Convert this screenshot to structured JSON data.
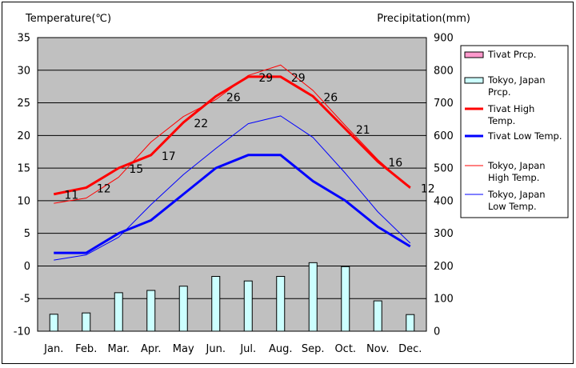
{
  "chart_data": {
    "type": "bar+line",
    "y_left_label": "Temperature(℃)",
    "y_right_label": "Precipitation(mm)",
    "y_left_range": [
      -10,
      35
    ],
    "y_left_ticks": [
      "35",
      "30",
      "25",
      "20",
      "15",
      "10",
      "5",
      "0",
      "-5",
      "-10"
    ],
    "y_right_range": [
      0,
      900
    ],
    "y_right_ticks": [
      "900",
      "800",
      "700",
      "600",
      "500",
      "400",
      "300",
      "200",
      "100",
      "0"
    ],
    "grid": true,
    "legend_position": "right",
    "categories": [
      "Jan.",
      "Feb.",
      "Mar.",
      "Apr.",
      "May",
      "Jun.",
      "Jul.",
      "Aug.",
      "Sep.",
      "Oct.",
      "Nov.",
      "Dec."
    ],
    "series": [
      {
        "name": "Tivat Prcp.",
        "kind": "bar",
        "axis": "right",
        "color": "#ff99cc",
        "values": [
          0,
          0,
          0,
          0,
          0,
          0,
          0,
          0,
          0,
          0,
          0,
          0
        ]
      },
      {
        "name": "Tokyo, Japan Prcp.",
        "kind": "bar",
        "axis": "right",
        "color": "#ccffff",
        "values": [
          52,
          56,
          118,
          125,
          138,
          168,
          154,
          168,
          210,
          198,
          93,
          51
        ]
      },
      {
        "name": "Tivat High Temp.",
        "kind": "line",
        "axis": "left",
        "color": "#ff0000",
        "width": 3,
        "values": [
          11,
          12,
          15,
          17,
          22,
          26,
          29,
          29,
          26,
          21,
          16,
          12
        ],
        "labels": [
          "11",
          "12",
          "15",
          "17",
          "22",
          "26",
          "29",
          "29",
          "26",
          "21",
          "16",
          "12"
        ]
      },
      {
        "name": "Tivat Low Temp.",
        "kind": "line",
        "axis": "left",
        "color": "#0000ff",
        "width": 3,
        "values": [
          2,
          2,
          5,
          7,
          11,
          15,
          17,
          17,
          13,
          10,
          6,
          3
        ]
      },
      {
        "name": "Tokyo, Japan High Temp.",
        "kind": "line",
        "axis": "left",
        "color": "#ff0000",
        "width": 1,
        "values": [
          9.6,
          10.4,
          13.6,
          19.0,
          22.9,
          25.5,
          29.2,
          30.8,
          26.9,
          21.5,
          16.3,
          11.9
        ]
      },
      {
        "name": "Tokyo, Japan Low Temp.",
        "kind": "line",
        "axis": "left",
        "color": "#0000ff",
        "width": 1,
        "values": [
          0.9,
          1.7,
          4.4,
          9.4,
          14.0,
          18.0,
          21.8,
          23.0,
          19.7,
          14.2,
          8.3,
          3.5
        ]
      }
    ],
    "legend": [
      {
        "name": "Tivat Prcp.",
        "lines": [
          "Tivat Prcp."
        ],
        "kind": "bar",
        "color": "#ff99cc"
      },
      {
        "name": "Tokyo, Japan Prcp.",
        "lines": [
          "Tokyo, Japan",
          "Prcp."
        ],
        "kind": "bar",
        "color": "#ccffff"
      },
      {
        "name": "Tivat High Temp.",
        "lines": [
          "Tivat High",
          "Temp."
        ],
        "kind": "line",
        "color": "#ff0000",
        "width": 3
      },
      {
        "name": "Tivat Low Temp.",
        "lines": [
          "Tivat Low Temp."
        ],
        "kind": "line",
        "color": "#0000ff",
        "width": 3
      },
      {
        "name": "Tokyo, Japan High Temp.",
        "lines": [
          "Tokyo, Japan",
          "High Temp."
        ],
        "kind": "line",
        "color": "#ff0000",
        "width": 1
      },
      {
        "name": "Tokyo, Japan Low Temp.",
        "lines": [
          "Tokyo, Japan",
          "Low Temp."
        ],
        "kind": "line",
        "color": "#0000ff",
        "width": 1
      }
    ],
    "colors": {
      "plot_background": "#c0c0c0",
      "grid": "#000000",
      "page_background": "#ffffff"
    }
  }
}
